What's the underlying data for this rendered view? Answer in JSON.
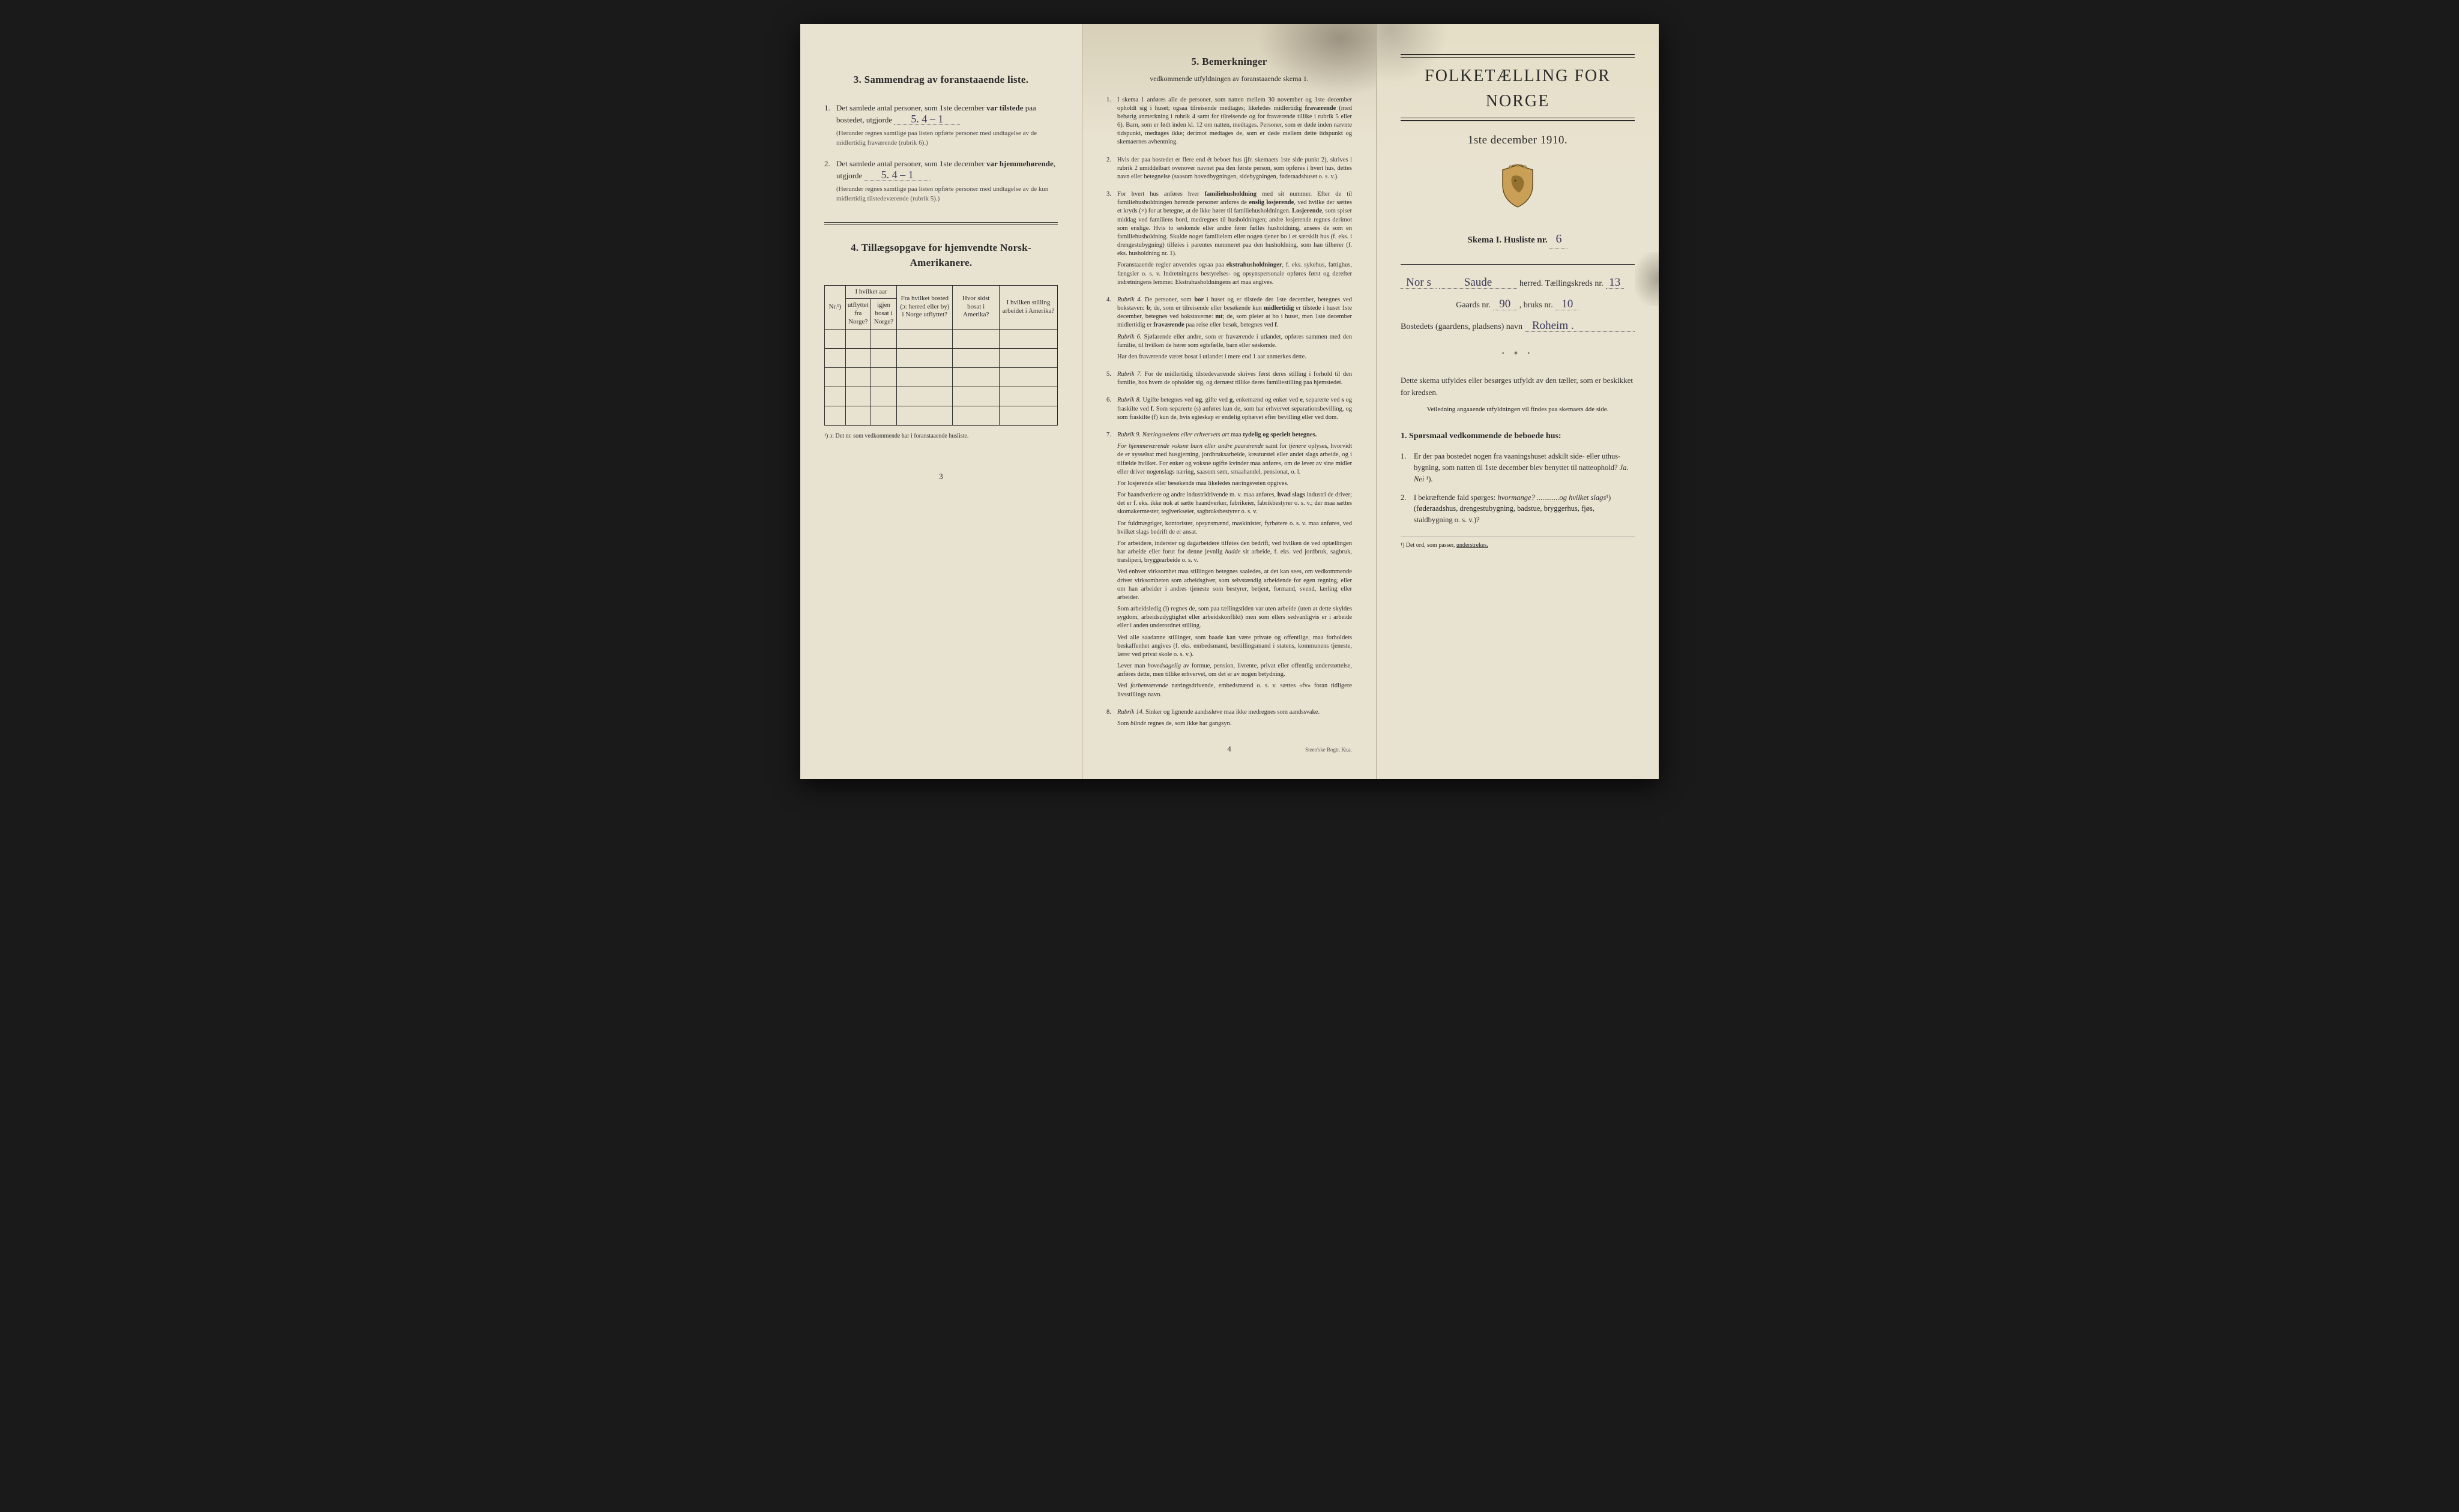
{
  "page1": {
    "section3": {
      "heading": "3.   Sammendrag av foranstaaende liste.",
      "item1_pre": "Det samlede antal personer, som 1ste december ",
      "item1_bold": "var tilstede",
      "item1_post": " paa bostedet, utgjorde",
      "item1_value": "5.    4 – 1",
      "item1_note": "(Herunder regnes samtlige paa listen opførte personer med undtagelse av de midlertidig fraværende (rubrik 6).)",
      "item2_pre": "Det samlede antal personer, som 1ste december ",
      "item2_bold": "var hjemmehørende",
      "item2_post": ", utgjorde",
      "item2_value": "5.    4 – 1",
      "item2_note": "(Herunder regnes samtlige paa listen opførte personer med undtagelse av de kun midlertidig tilstedeværende (rubrik 5).)"
    },
    "section4": {
      "heading": "4.   Tillægsopgave for hjemvendte Norsk-Amerikanere.",
      "columns": {
        "nr": "Nr.¹)",
        "aar_group": "I hvilket aar",
        "aar_ut": "utflyttet fra Norge?",
        "aar_inn": "igjen bosat i Norge?",
        "bosted": "Fra hvilket bosted (ɔ: herred eller by) i Norge utflyttet?",
        "sidst": "Hvor sidst bosat i Amerika?",
        "stilling": "I hvilken stilling arbeidet i Amerika?"
      },
      "rows": 5,
      "note": "¹) ɔ: Det nr. som vedkommende har i foranstaaende husliste."
    },
    "page_num": "3"
  },
  "page2": {
    "heading": "5.   Bemerkninger",
    "subheading": "vedkommende utfyldningen av foranstaaende skema 1.",
    "items": [
      {
        "n": "1.",
        "paras": [
          "I skema 1 anføres alle de personer, som natten mellem 30 november og 1ste december opholdt sig i huset; ogsaa tilreisende medtages; likeledes midlertidig <b>fraværende</b> (med behørig anmerkning i rubrik 4 samt for tilreisende og for fraværende tillike i rubrik 5 eller 6). Barn, som er født inden kl. 12 om natten, medtages. Personer, som er døde inden nævnte tidspunkt, medtages ikke; derimot medtages de, som er døde mellem dette tidspunkt og skemaernes avhentning."
        ]
      },
      {
        "n": "2.",
        "paras": [
          "Hvis der paa bostedet er flere end ét beboet hus (jfr. skemaets 1ste side punkt 2), skrives i rubrik 2 umiddelbart ovenover navnet paa den første person, som opføres i hvert hus, dettes navn eller betegnelse (saasom hovedbygningen, sidebygningen, føderaadshuset o. s. v.)."
        ]
      },
      {
        "n": "3.",
        "paras": [
          "For hvert hus anføres hver <b>familiehusholdning</b> med sit nummer. Efter de til familiehusholdningen hørende personer anføres de <b>enslig losjerende</b>, ved hvilke der sættes et kryds (×) for at betegne, at de ikke hører til familiehusholdningen. <b>Losjerende</b>, som spiser middag ved familiens bord, medregnes til husholdningen; andre losjerende regnes derimot som enslige. Hvis to søskende eller andre fører fælles husholdning, ansees de som en familiehusholdning. Skulde noget familielem eller nogen tjener bo i et særskilt hus (f. eks. i drengestubygning) tilføies i parentes nummeret paa den husholdning, som han tilhører (f. eks. husholdning nr. 1).",
          "Foranstaaende regler anvendes ogsaa paa <b>ekstrahusholdninger</b>, f. eks. sykehus, fattighus, fængsler o. s. v. Indretningens bestyrelses- og opsynspersonale opføres først og derefter indretningens lemmer. Ekstrahusholdningens art maa angives."
        ]
      },
      {
        "n": "4.",
        "paras": [
          "<em>Rubrik 4.</em> De personer, som <b>bor</b> i huset og er tilstede der 1ste december, betegnes ved bokstaven: <b>b</b>; de, som er tilreisende eller besøkende kun <b>midlertidig</b> er tilstede i huset 1ste december, betegnes ved bokstaverne: <b>mt</b>; de, som pleier at bo i huset, men 1ste december midlertidig er <b>fraværende</b> paa reise eller besøk, betegnes ved <b>f</b>.",
          "<em>Rubrik 6.</em> Sjøfarende eller andre, som er fraværende i utlandet, opføres sammen med den familie, til hvilken de hører som egtefælle, barn eller søskende.",
          "Har den fraværende været bosat i utlandet i mere end 1 aar anmerkes dette."
        ]
      },
      {
        "n": "5.",
        "paras": [
          "<em>Rubrik 7.</em> For de midlertidig tilstedeværende skrives først deres stilling i forhold til den familie, hos hvem de opholder sig, og dernæst tillike deres familiestilling paa hjemstedet."
        ]
      },
      {
        "n": "6.",
        "paras": [
          "<em>Rubrik 8.</em> Ugifte betegnes ved <b>ug</b>, gifte ved <b>g</b>, enkemænd og enker ved <b>e</b>, separerte ved <b>s</b> og fraskilte ved <b>f</b>. Som separerte (s) anføres kun de, som har erhvervet separationsbevilling, og som fraskilte (f) kun de, hvis egteskap er endelig ophævet efter bevilling eller ved dom."
        ]
      },
      {
        "n": "7.",
        "paras": [
          "<em>Rubrik 9. Næringsveiens eller erhvervets art</em> maa <b>tydelig og specielt betegnes.</b>",
          "<em>For hjemmeværende voksne barn eller andre paarørende</em> samt for <em>tjenere</em> oplyses, hvorvidt de er sysselsat med husgjerning, jordbruksarbeide, kreaturstel eller andet slags arbeide, og i tilfælde hvilket. For enker og voksne ugifte kvinder maa anføres, om de lever av sine midler eller driver nogenslags næring, saasom søm, smaahandel, pensionat, o. l.",
          "For losjerende eller besøkende maa likeledes næringsveien opgives.",
          "For haandverkere og andre industridrivende m. v. maa anføres, <b>hvad slags</b> industri de driver; det er f. eks. ikke nok at sætte haandverker, fabrikeier, fabrikbestyrer o. s. v.; der maa sættes skomakermester, teglverkseier, sagbruksbestyrer o. s. v.",
          "For fuldmægtiger, kontorister, opsynsmænd, maskinister, fyrbøtere o. s. v. maa anføres, ved hvilket slags bedrift de er ansat.",
          "For arbeidere, inderster og dagarbeidere tilføies den bedrift, ved hvilken de ved optællingen har arbeide eller forut for denne jevnlig <em>hadde</em> sit arbeide, f. eks. ved jordbruk, sagbruk, træsliperi, bryggearbeide o. s. v.",
          "Ved enhver virksomhet maa stillingen betegnes saaledes, at det kan sees, om vedkommende driver virksomheten som arbeidsgiver, som selvstændig arbeidende for egen regning, eller om han arbeider i andres tjeneste som bestyrer, betjent, formand, svend, lærling eller arbeider.",
          "Som arbeidsledig (l) regnes de, som paa tællingstiden var uten arbeide (uten at dette skyldes sygdom, arbeidsudygtighet eller arbeidskonflikt) men som ellers sedvanligvis er i arbeide eller i anden underordnet stilling.",
          "Ved alle saadanne stillinger, som baade kan være private og offentlige, maa forholdets beskaffenhet angives (f. eks. embedsmand, bestillingsmand i statens, kommunens tjeneste, lærer ved privat skole o. s. v.).",
          "Lever man <em>hovedsagelig</em> av formue, pension, livrente, privat eller offentlig understøttelse, anføres dette, men tillike erhvervet, om det er av nogen betydning.",
          "Ved <em>forhenværende</em> næringsdrivende, embedsmænd o. s. v. sættes «fv» foran tidligere livsstillings navn."
        ]
      },
      {
        "n": "8.",
        "paras": [
          "<em>Rubrik 14.</em> Sinker og lignende aandssløve maa ikke medregnes som aandssvake.",
          "Som <em>blinde</em> regnes de, som ikke har gangsyn."
        ]
      }
    ],
    "page_num": "4",
    "printer": "Steen'ske Bogtr.  Kr.a."
  },
  "page3": {
    "title": "FOLKETÆLLING FOR NORGE",
    "subtitle": "1ste december 1910.",
    "skema_label": "Skema I.   Husliste nr.",
    "skema_value": "6",
    "line1": {
      "value1": "Nor s",
      "value2": "Saude",
      "label1": "herred.  Tællingskreds nr.",
      "value3": "13"
    },
    "line2": {
      "label1": "Gaards nr.",
      "value1": "90",
      "label2": ", bruks nr.",
      "value2": "10"
    },
    "line3": {
      "label": "Bostedets (gaardens, pladsens) navn",
      "value": "Roheim ."
    },
    "body1": "Dette skema utfyldes eller besørges utfyldt av den tæller, som er beskikket for kredsen.",
    "body2": "Veiledning angaaende utfyldningen vil findes paa skemaets 4de side.",
    "q_heading": "1. Spørsmaal vedkommende de beboede hus:",
    "q1": "Er der paa bostedet nogen fra vaaningshuset adskilt side- eller uthus-bygning, som natten til 1ste december blev benyttet til natteophold?   <em>Ja.   Nei</em> ¹).",
    "q2": "I bekræftende fald spørges: <em>hvormange? ............og hvilket slags</em>¹) (føderaadshus, drengestubygning, badstue, bryggerhus, fjøs, staldbygning o. s. v.)?",
    "footnote": "¹) Det ord, som passer, <u>understrekes.</u>",
    "colors": {
      "paper": "#e8e2d0",
      "ink": "#2a2a2a",
      "handwriting": "#3a3a5a"
    }
  }
}
